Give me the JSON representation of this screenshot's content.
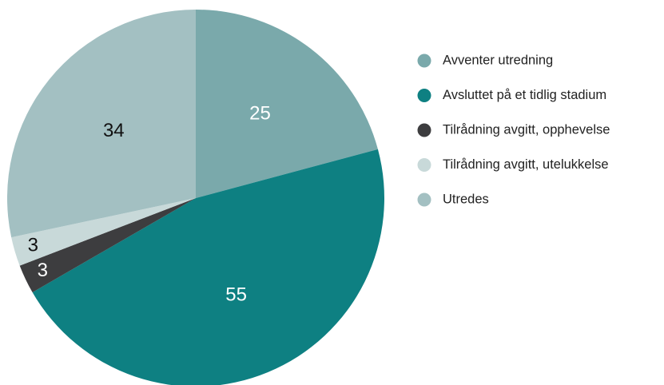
{
  "chart_data": {
    "type": "pie",
    "categories": [
      "Avventer utredning",
      "Avsluttet på et tidlig stadium",
      "Tilrådning avgitt, opphevelse",
      "Tilrådning avgitt, utelukkelse",
      "Utredes"
    ],
    "values": [
      25,
      55,
      3,
      3,
      34
    ],
    "colors": [
      "#7aa9ab",
      "#0e8082",
      "#3d3d3f",
      "#c8d9d9",
      "#a3c0c2"
    ],
    "legend": "right"
  }
}
